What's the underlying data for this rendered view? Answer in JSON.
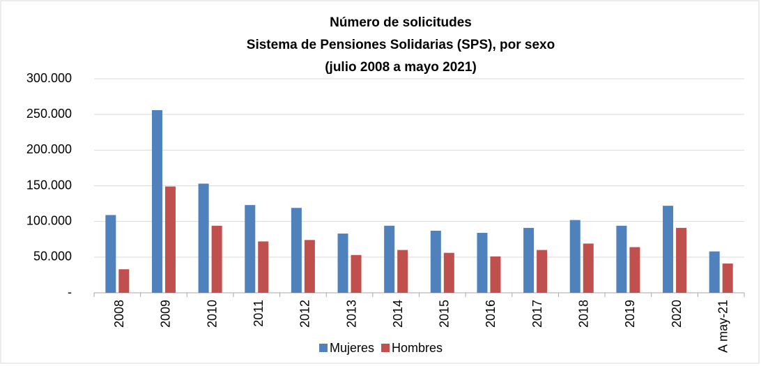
{
  "chart_data": {
    "type": "bar",
    "title": [
      "Número de solicitudes",
      "Sistema de Pensiones Solidarias (SPS), por sexo",
      "(julio 2008 a mayo 2021)"
    ],
    "categories": [
      "2008",
      "2009",
      "2010",
      "2011",
      "2012",
      "2013",
      "2014",
      "2015",
      "2016",
      "2017",
      "2018",
      "2019",
      "2020",
      "A may-21"
    ],
    "series": [
      {
        "name": "Mujeres",
        "color": "#4f81bd",
        "values": [
          109000,
          256000,
          153000,
          123000,
          119000,
          83000,
          94000,
          87000,
          84000,
          91000,
          102000,
          94000,
          122000,
          58000
        ]
      },
      {
        "name": "Hombres",
        "color": "#c0504d",
        "values": [
          33000,
          149000,
          94000,
          72000,
          74000,
          53000,
          60000,
          56000,
          51000,
          60000,
          69000,
          64000,
          91000,
          41000
        ]
      }
    ],
    "ylim": [
      0,
      300000
    ],
    "yticks": [
      {
        "value": 0,
        "label": "-"
      },
      {
        "value": 50000,
        "label": "50.000"
      },
      {
        "value": 100000,
        "label": "100.000"
      },
      {
        "value": 150000,
        "label": "150.000"
      },
      {
        "value": 200000,
        "label": "200.000"
      },
      {
        "value": 250000,
        "label": "250.000"
      },
      {
        "value": 300000,
        "label": "300.000"
      }
    ],
    "grid": true,
    "legend": "bottom"
  }
}
